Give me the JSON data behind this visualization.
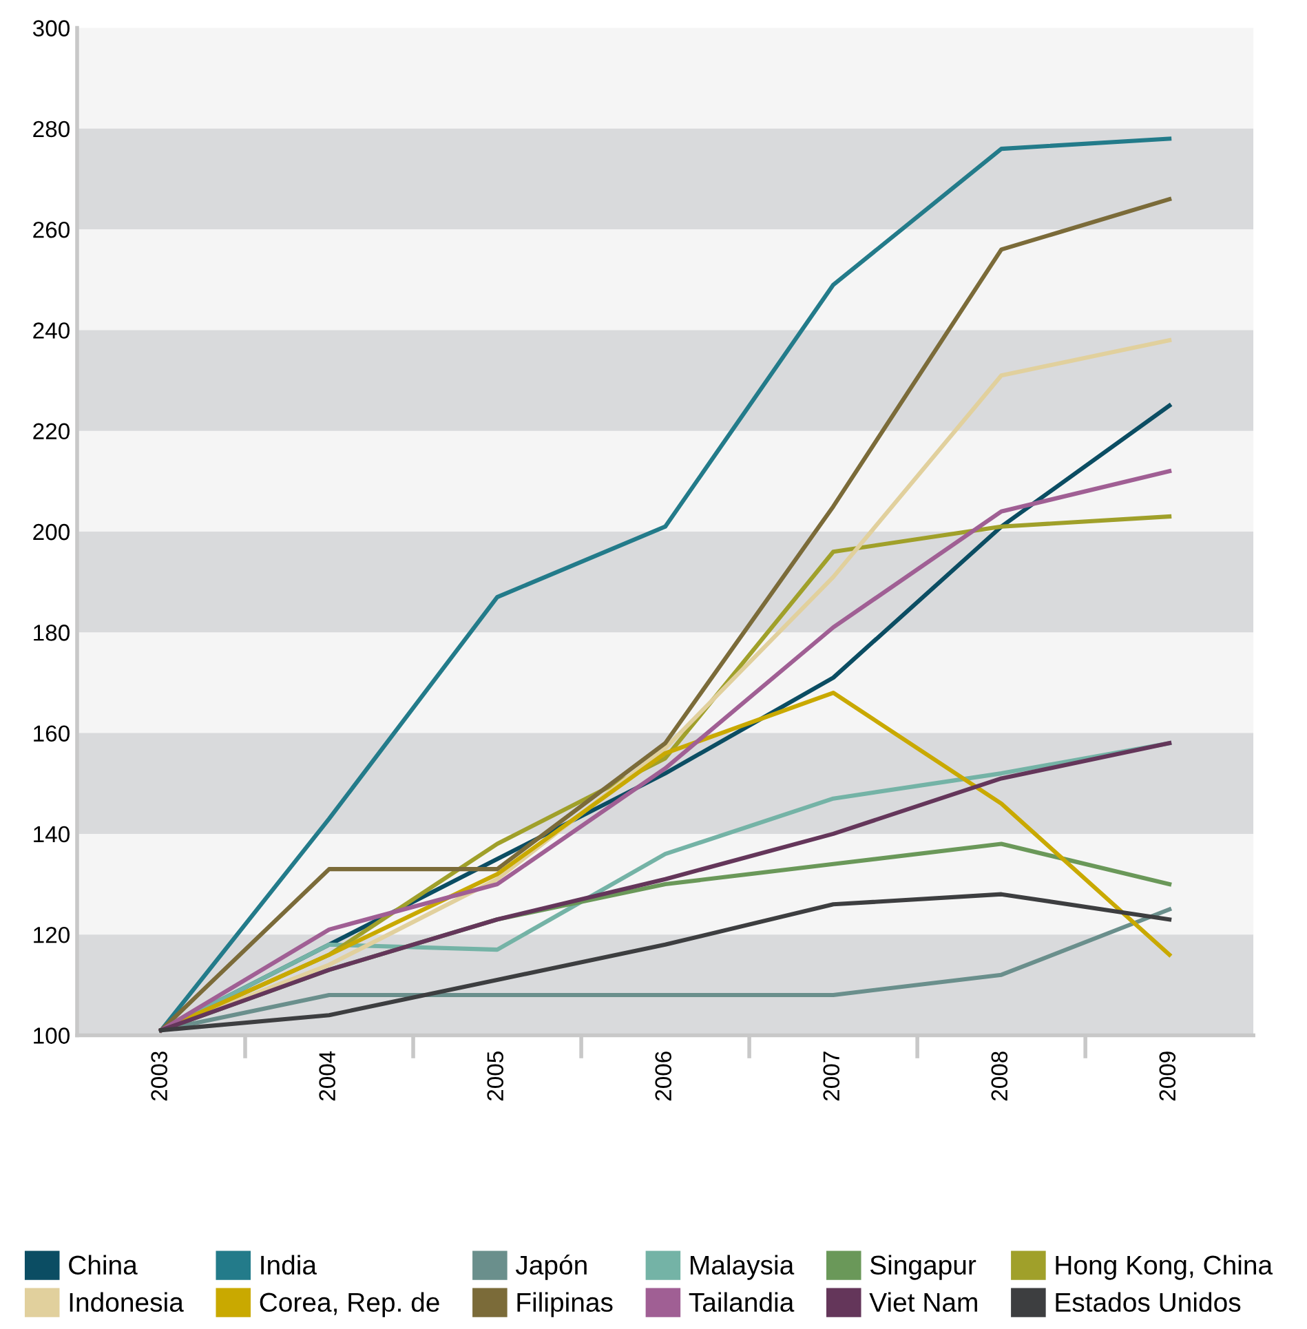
{
  "chart_data": {
    "type": "line",
    "categories": [
      "2003",
      "2004",
      "2005",
      "2006",
      "2007",
      "2008",
      "2009"
    ],
    "ylim": [
      100,
      300
    ],
    "yticks": [
      100,
      120,
      140,
      160,
      180,
      200,
      220,
      240,
      260,
      280,
      300
    ],
    "grid": false,
    "legend": "bottom",
    "marker": "none",
    "line_style": "solid",
    "bands": [
      {
        "axis": "y",
        "from": 100,
        "to": 120,
        "color": "#d9dadc"
      },
      {
        "axis": "y",
        "from": 140,
        "to": 160,
        "color": "#d9dadc"
      },
      {
        "axis": "y",
        "from": 180,
        "to": 200,
        "color": "#d9dadc"
      },
      {
        "axis": "y",
        "from": 220,
        "to": 240,
        "color": "#d9dadc"
      },
      {
        "axis": "y",
        "from": 260,
        "to": 280,
        "color": "#d9dadc"
      }
    ],
    "series": [
      {
        "name": "China",
        "color": "#0b4d63",
        "values": [
          101,
          118,
          135,
          152,
          171,
          201,
          225
        ]
      },
      {
        "name": "India",
        "color": "#237b8a",
        "values": [
          101,
          143,
          187,
          201,
          249,
          276,
          278
        ]
      },
      {
        "name": "Japón",
        "color": "#6a8f8c",
        "values": [
          101,
          108,
          108,
          108,
          108,
          112,
          125
        ]
      },
      {
        "name": "Malaysia",
        "color": "#74b3a6",
        "values": [
          101,
          118,
          117,
          136,
          147,
          152,
          158
        ]
      },
      {
        "name": "Singapur",
        "color": "#6a9859",
        "values": [
          101,
          113,
          123,
          130,
          134,
          138,
          130
        ]
      },
      {
        "name": "Hong Kong, China",
        "color": "#a0a02a",
        "values": [
          101,
          116,
          138,
          155,
          196,
          201,
          203
        ]
      },
      {
        "name": "Indonesia",
        "color": "#e1d09d",
        "values": [
          101,
          114,
          131,
          157,
          191,
          231,
          238
        ]
      },
      {
        "name": "Corea, Rep. de",
        "color": "#c9a900",
        "values": [
          101,
          116,
          132,
          156,
          168,
          146,
          116
        ]
      },
      {
        "name": "Filipinas",
        "color": "#7b6b39",
        "values": [
          101,
          133,
          133,
          158,
          205,
          256,
          266
        ]
      },
      {
        "name": "Tailandia",
        "color": "#a05f94",
        "values": [
          101,
          121,
          130,
          153,
          181,
          204,
          212
        ]
      },
      {
        "name": "Viet Nam",
        "color": "#64365a",
        "values": [
          101,
          113,
          123,
          131,
          140,
          151,
          158
        ]
      },
      {
        "name": "Estados Unidos",
        "color": "#3d3e40",
        "values": [
          101,
          104,
          111,
          118,
          126,
          128,
          123
        ]
      }
    ]
  }
}
